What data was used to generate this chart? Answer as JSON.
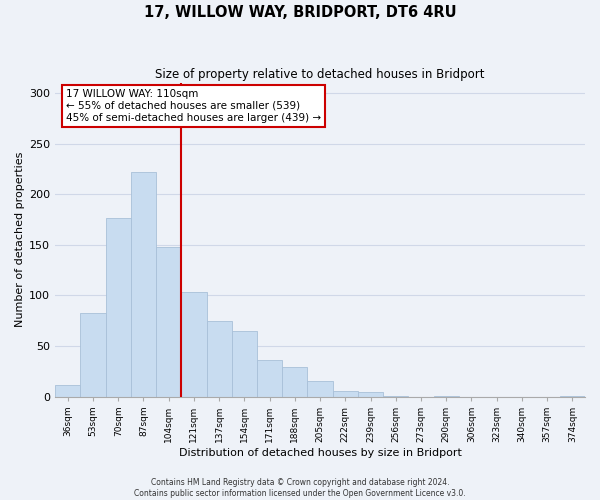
{
  "title": "17, WILLOW WAY, BRIDPORT, DT6 4RU",
  "subtitle": "Size of property relative to detached houses in Bridport",
  "xlabel": "Distribution of detached houses by size in Bridport",
  "ylabel": "Number of detached properties",
  "bar_labels": [
    "36sqm",
    "53sqm",
    "70sqm",
    "87sqm",
    "104sqm",
    "121sqm",
    "137sqm",
    "154sqm",
    "171sqm",
    "188sqm",
    "205sqm",
    "222sqm",
    "239sqm",
    "256sqm",
    "273sqm",
    "290sqm",
    "306sqm",
    "323sqm",
    "340sqm",
    "357sqm",
    "374sqm"
  ],
  "bar_values": [
    11,
    83,
    177,
    222,
    148,
    103,
    75,
    65,
    36,
    29,
    15,
    5,
    4,
    1,
    0,
    1,
    0,
    0,
    0,
    0,
    1
  ],
  "bar_color": "#c8dcf0",
  "bar_edge_color": "#a8c0d8",
  "vline_x": 4.5,
  "vline_color": "#cc0000",
  "annotation_text_line1": "17 WILLOW WAY: 110sqm",
  "annotation_text_line2": "← 55% of detached houses are smaller (539)",
  "annotation_text_line3": "45% of semi-detached houses are larger (439) →",
  "annotation_box_color": "#ffffff",
  "annotation_box_edge_color": "#cc0000",
  "ylim": [
    0,
    310
  ],
  "yticks": [
    0,
    50,
    100,
    150,
    200,
    250,
    300
  ],
  "grid_color": "#d0d8e8",
  "background_color": "#eef2f8",
  "footer_line1": "Contains HM Land Registry data © Crown copyright and database right 2024.",
  "footer_line2": "Contains public sector information licensed under the Open Government Licence v3.0."
}
